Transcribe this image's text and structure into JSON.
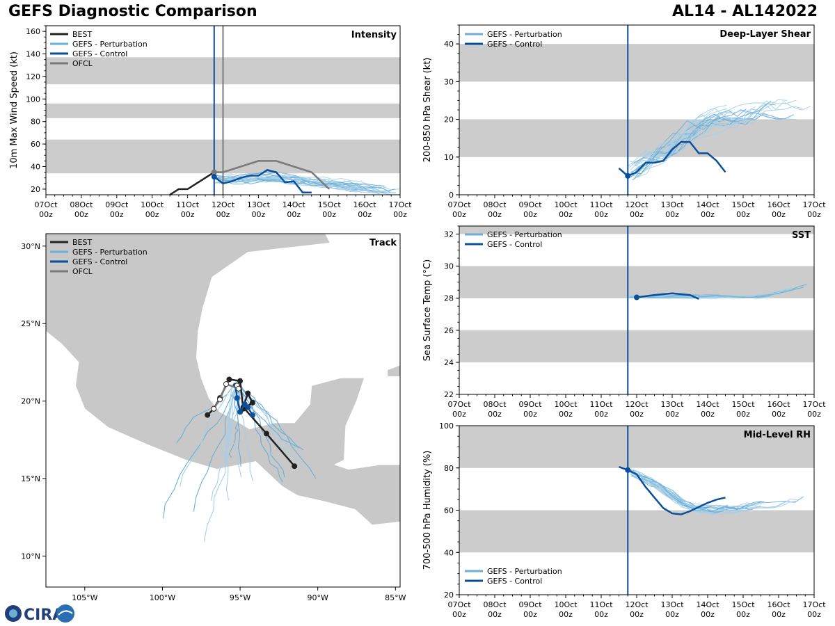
{
  "header": {
    "title": "GEFS Diagnostic Comparison",
    "storm": "AL14 - AL142022"
  },
  "logo": {
    "text": "CIRA",
    "icon": "cira-logo-icon"
  },
  "colors": {
    "best": "#222222",
    "perturbation": "#6baed6",
    "perturbation_light": "#a6cfe8",
    "control": "#0b4f9c",
    "ofcl": "#7a7a7a",
    "band": "#cccccc",
    "land": "#c8c8c8"
  },
  "time_axis": {
    "ticks": [
      "07Oct",
      "08Oct",
      "09Oct",
      "10Oct",
      "11Oct",
      "12Oct",
      "13Oct",
      "14Oct",
      "15Oct",
      "16Oct",
      "17Oct"
    ],
    "sub": "00z"
  },
  "chart_data": [
    {
      "id": "intensity",
      "type": "line",
      "title": "Intensity",
      "ylabel": "10m Max Wind Speed (kt)",
      "xlim": [
        0,
        10
      ],
      "ylim": [
        15,
        165
      ],
      "yticks": [
        20,
        40,
        60,
        80,
        100,
        120,
        140,
        160
      ],
      "bands": [
        [
          34,
          64
        ],
        [
          83,
          96
        ],
        [
          113,
          137
        ]
      ],
      "vlines": [
        {
          "x": 4.75,
          "color": "control"
        },
        {
          "x": 5.0,
          "color": "ofcl"
        }
      ],
      "legend": [
        "BEST",
        "GEFS - Perturbation",
        "GEFS - Control",
        "OFCL"
      ],
      "series": [
        {
          "name": "BEST",
          "role": "best",
          "x": [
            3.5,
            3.75,
            4.0,
            4.25,
            4.5,
            4.75
          ],
          "y": [
            15,
            20,
            20,
            25,
            30,
            35
          ]
        },
        {
          "name": "OFCL",
          "role": "ofcl",
          "x": [
            4.75,
            5.0,
            5.5,
            6.0,
            6.5,
            7.0,
            7.5,
            8.0
          ],
          "y": [
            35,
            35,
            40,
            45,
            45,
            40,
            35,
            20
          ]
        },
        {
          "name": "GEFS - Control",
          "role": "control",
          "x": [
            4.75,
            5.0,
            5.25,
            5.5,
            5.75,
            6.0,
            6.25,
            6.5,
            6.75,
            7.0,
            7.25,
            7.5
          ],
          "y": [
            31,
            25,
            27,
            30,
            32,
            32,
            37,
            35,
            26,
            27,
            17,
            17
          ]
        }
      ]
    },
    {
      "id": "shear",
      "type": "line",
      "title": "Deep-Layer Shear",
      "ylabel": "200-850 hPa Shear (kt)",
      "xlim": [
        0,
        10
      ],
      "ylim": [
        0,
        45
      ],
      "yticks": [
        0,
        10,
        20,
        30,
        40
      ],
      "bands": [
        [
          10,
          20
        ],
        [
          30,
          40
        ]
      ],
      "vlines": [
        {
          "x": 4.75,
          "color": "control"
        }
      ],
      "legend": [
        "GEFS - Perturbation",
        "GEFS - Control"
      ],
      "series": [
        {
          "name": "GEFS - Control",
          "role": "control",
          "x": [
            4.5,
            4.75,
            5.0,
            5.25,
            5.5,
            5.75,
            6.0,
            6.25,
            6.5,
            6.75,
            7.0,
            7.25,
            7.5
          ],
          "y": [
            7,
            5,
            6,
            8.5,
            8.5,
            9,
            12,
            14,
            14,
            11,
            11,
            9,
            6
          ]
        }
      ]
    },
    {
      "id": "sst",
      "type": "line",
      "title": "SST",
      "ylabel": "Sea Surface Temp (°C)",
      "xlim": [
        0,
        10
      ],
      "ylim": [
        22,
        32.5
      ],
      "yticks": [
        22,
        24,
        26,
        28,
        30,
        32
      ],
      "bands": [
        [
          24,
          26
        ],
        [
          28,
          30
        ],
        [
          32,
          32.5
        ]
      ],
      "vlines": [
        {
          "x": 4.75,
          "color": "control"
        }
      ],
      "legend": [
        "GEFS - Perturbation",
        "GEFS - Control"
      ],
      "series": [
        {
          "name": "GEFS - Control",
          "role": "control",
          "x": [
            5.0,
            5.5,
            6.0,
            6.5,
            6.75
          ],
          "y": [
            28.05,
            28.2,
            28.3,
            28.2,
            27.95
          ]
        }
      ]
    },
    {
      "id": "rh",
      "type": "line",
      "title": "Mid-Level RH",
      "ylabel": "700-500 hPa Humidity (%)",
      "xlim": [
        0,
        10
      ],
      "ylim": [
        20,
        100
      ],
      "yticks": [
        20,
        40,
        60,
        80,
        100
      ],
      "bands": [
        [
          40,
          60
        ],
        [
          80,
          100
        ]
      ],
      "vlines": [
        {
          "x": 4.75,
          "color": "control"
        }
      ],
      "legend": [
        "GEFS - Perturbation",
        "GEFS - Control"
      ],
      "series": [
        {
          "name": "GEFS - Control",
          "role": "control",
          "x": [
            4.5,
            4.75,
            5.0,
            5.25,
            5.5,
            5.75,
            6.0,
            6.25,
            6.5,
            6.75,
            7.0,
            7.25,
            7.5
          ],
          "y": [
            80.5,
            79,
            77,
            71,
            66,
            61,
            58.5,
            58,
            59.5,
            61.5,
            63.5,
            65,
            66
          ]
        }
      ]
    },
    {
      "id": "track",
      "type": "scatter",
      "title": "Track",
      "xlim": [
        -107.5,
        -84.7
      ],
      "ylim": [
        8,
        30.8
      ],
      "xticks": [
        "105°W",
        "100°W",
        "95°W",
        "90°W",
        "85°W"
      ],
      "xtick_values": [
        -105,
        -100,
        -95,
        -90,
        -85
      ],
      "yticks": [
        "10°N",
        "15°N",
        "20°N",
        "25°N",
        "30°N"
      ],
      "ytick_values": [
        10,
        15,
        20,
        25,
        30
      ],
      "legend": [
        "BEST",
        "GEFS - Perturbation",
        "GEFS - Control",
        "OFCL"
      ],
      "series": [
        {
          "name": "BEST",
          "role": "best",
          "lon": [
            -91.5,
            -93.3,
            -94.8,
            -94.5,
            -94.2,
            -94.8,
            -95.0,
            -95.7,
            -96.3,
            -96.7,
            -97.1
          ],
          "lat": [
            15.8,
            17.9,
            19.6,
            20.5,
            19.9,
            19.5,
            21.3,
            21.4,
            20.2,
            19.5,
            19.1
          ]
        },
        {
          "name": "GEFS - Control",
          "role": "control",
          "lon": [
            -95.3,
            -95.2,
            -95.0,
            -94.7,
            -94.5,
            -94.2
          ],
          "lat": [
            21.0,
            20.2,
            19.3,
            19.8,
            19.6,
            19.1
          ]
        },
        {
          "name": "OFCL",
          "role": "ofcl",
          "lon": [
            -95.2,
            -95.1,
            -95.9,
            -96.3,
            -96.7
          ],
          "lat": [
            21.0,
            20.8,
            21.1,
            20.1,
            19.5
          ]
        }
      ]
    }
  ]
}
